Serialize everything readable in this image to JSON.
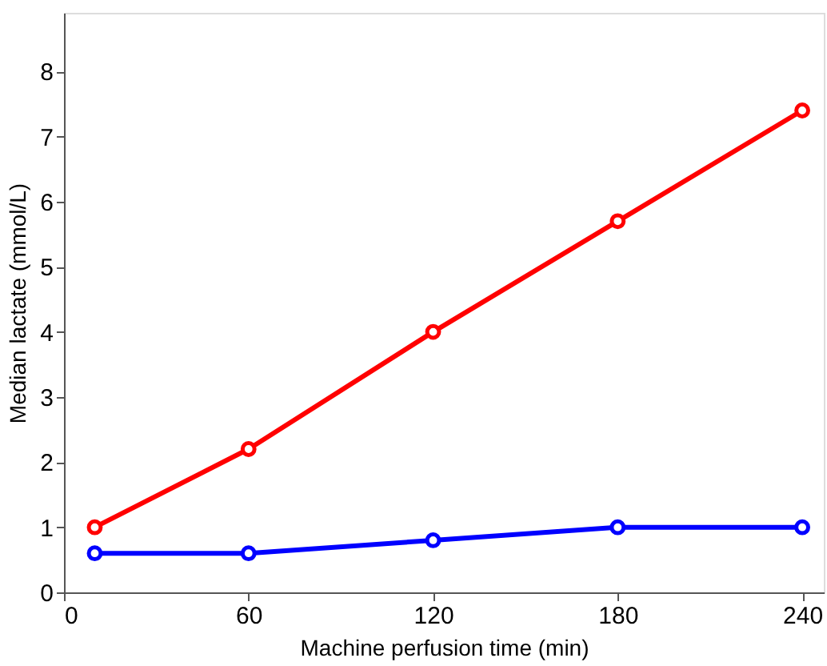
{
  "chart_data": {
    "type": "line",
    "xlabel": "Machine perfusion time (min)",
    "ylabel": "Median lactate (mmol/L)",
    "x": [
      10,
      60,
      120,
      180,
      240
    ],
    "series": [
      {
        "color": "#ff0000",
        "values": [
          1.0,
          2.2,
          4.0,
          5.7,
          7.4
        ]
      },
      {
        "color": "#0000ff",
        "values": [
          0.6,
          0.6,
          0.8,
          1.0,
          1.0
        ]
      }
    ],
    "xlim": [
      0,
      247
    ],
    "xticks": [
      0,
      60,
      120,
      180,
      240
    ],
    "ylim": [
      0,
      8.9
    ],
    "yticks": [
      0,
      1,
      2,
      3,
      4,
      5,
      6,
      7,
      8
    ],
    "grid": false,
    "legend": false,
    "marker": "circle",
    "line_style": "solid"
  }
}
